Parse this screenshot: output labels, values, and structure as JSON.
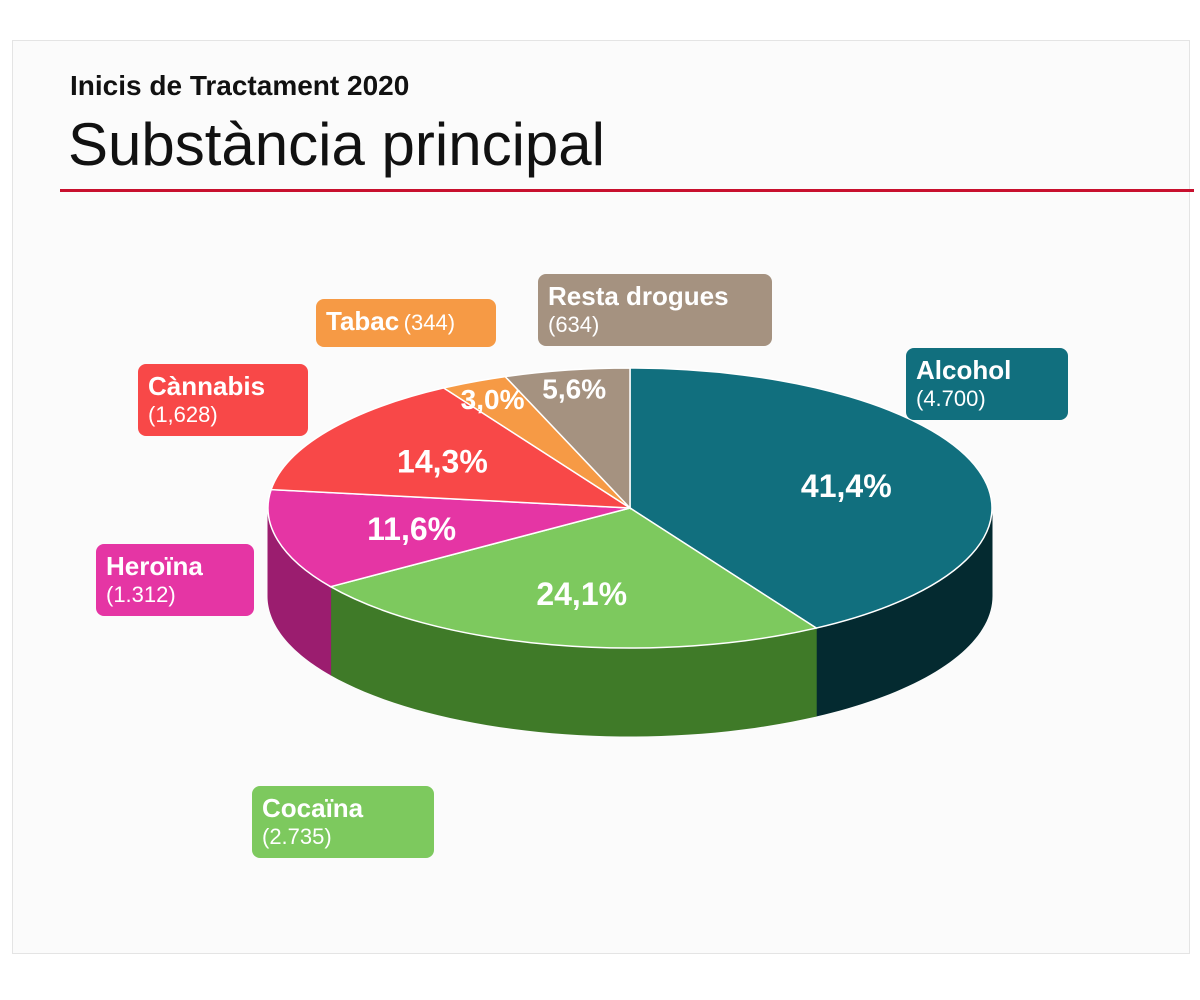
{
  "header": {
    "subtitle": "Inicis de Tractament 2020",
    "title": "Substància principal"
  },
  "colors": {
    "rule": "#c8102e"
  },
  "chart_data": {
    "type": "pie",
    "style": "3d",
    "slices": [
      {
        "label": "Alcohol",
        "count": "(4.700)",
        "value": 41.4,
        "pct_label": "41,4%",
        "color": "#116f7e",
        "side": "#042a30"
      },
      {
        "label": "Cocaïna",
        "count": "(2.735)",
        "value": 24.1,
        "pct_label": "24,1%",
        "color": "#7dc95e",
        "side": "#3f7a28"
      },
      {
        "label": "Heroïna",
        "count": "(1.312)",
        "value": 11.6,
        "pct_label": "11,6%",
        "color": "#e535a4",
        "side": "#9b1d6f"
      },
      {
        "label": "Cànnabis",
        "count": "(1,628)",
        "value": 14.3,
        "pct_label": "14,3%",
        "color": "#f84848",
        "side": "#a82424"
      },
      {
        "label": "Tabac",
        "count": "(344)",
        "value": 3.0,
        "pct_label": "3,0%",
        "color": "#f69a45",
        "side": "#b0621f"
      },
      {
        "label": "Resta drogues",
        "count": "(634)",
        "value": 5.6,
        "pct_label": "5,6%",
        "color": "#a59280",
        "side": "#6e5e50"
      }
    ]
  }
}
